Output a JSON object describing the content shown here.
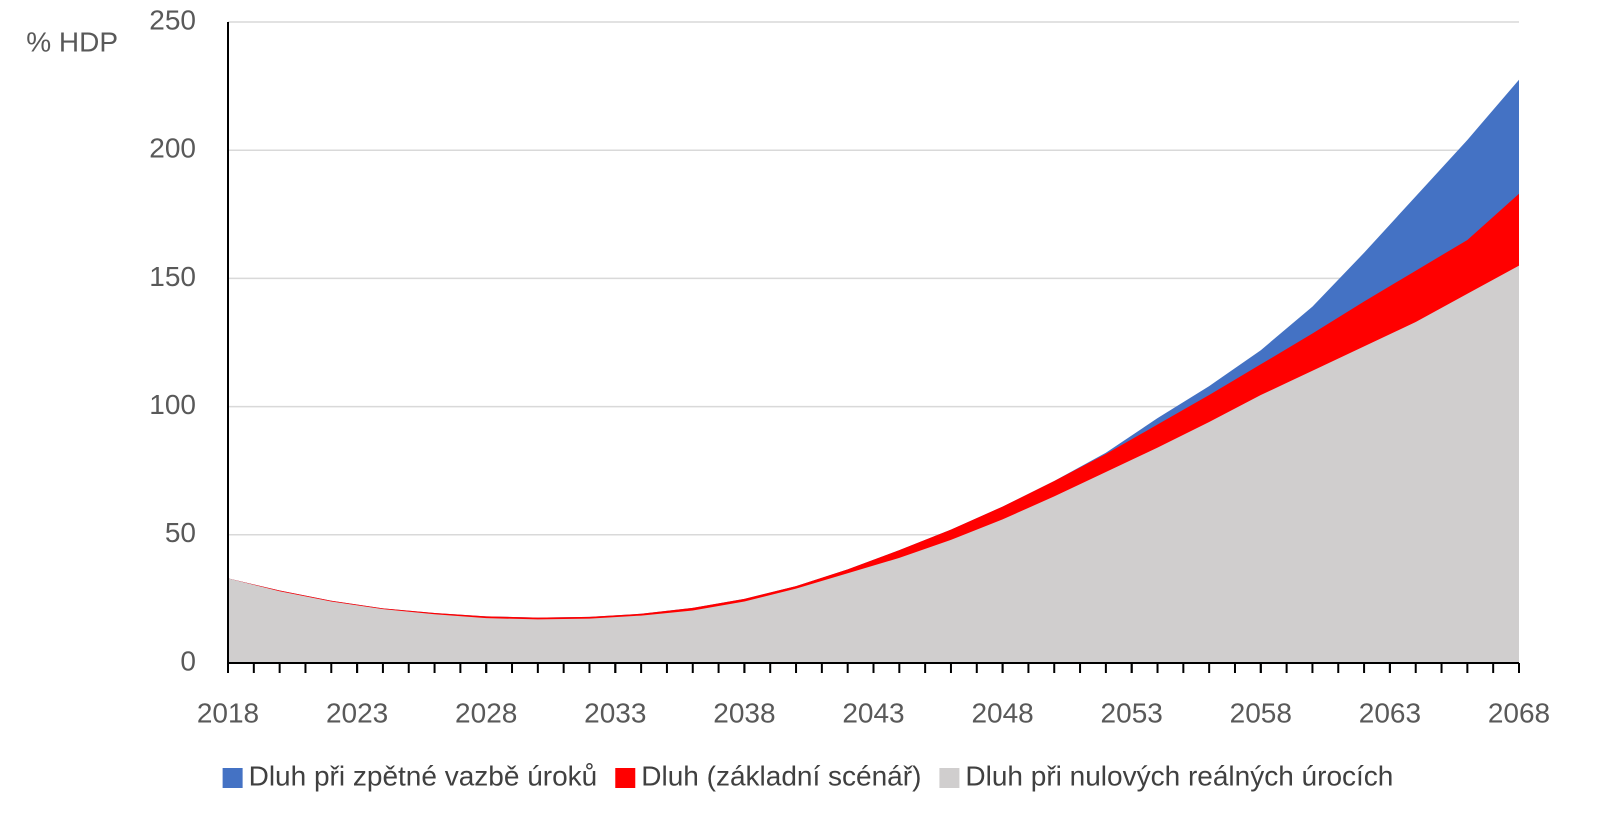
{
  "chart_data": {
    "type": "area",
    "ylabel": "% HDP",
    "x": [
      2018,
      2020,
      2022,
      2024,
      2026,
      2028,
      2030,
      2032,
      2034,
      2036,
      2038,
      2040,
      2042,
      2044,
      2046,
      2048,
      2050,
      2052,
      2054,
      2056,
      2058,
      2060,
      2062,
      2064,
      2066,
      2068
    ],
    "series": [
      {
        "name": "Dluh při zpětné vazbě úroků",
        "color": "#4472c4",
        "values": [
          33,
          28.3,
          24.3,
          21.3,
          19.5,
          18.2,
          17.7,
          18,
          19.2,
          21.5,
          25,
          30,
          36.5,
          44,
          52,
          61,
          71,
          82,
          95.5,
          108,
          122,
          139,
          160,
          182,
          204,
          227.5
        ]
      },
      {
        "name": "Dluh (základní scénář)",
        "color": "#ff0000",
        "values": [
          33,
          28.3,
          24.3,
          21.3,
          19.5,
          18.2,
          17.7,
          18,
          19.2,
          21.5,
          25,
          30,
          36.5,
          44,
          52,
          61,
          71,
          81.5,
          93,
          104.5,
          116.5,
          128.5,
          141,
          153,
          165,
          183
        ]
      },
      {
        "name": "Dluh při nulových reálných úrocích",
        "color": "#d0cece",
        "values": [
          33,
          28,
          24,
          21,
          19,
          17.5,
          17,
          17.3,
          18.5,
          20.5,
          24,
          29,
          35,
          41,
          48,
          56,
          65,
          74.5,
          84,
          94,
          104.5,
          114,
          123.5,
          133,
          144,
          155
        ]
      }
    ],
    "xlim": [
      2018,
      2068
    ],
    "xticks": [
      2018,
      2023,
      2028,
      2033,
      2038,
      2043,
      2048,
      2053,
      2058,
      2063,
      2068
    ],
    "ylim": [
      0,
      250
    ],
    "yticks": [
      0,
      50,
      100,
      150,
      200,
      250
    ],
    "grid": true,
    "legend": "bottom"
  }
}
